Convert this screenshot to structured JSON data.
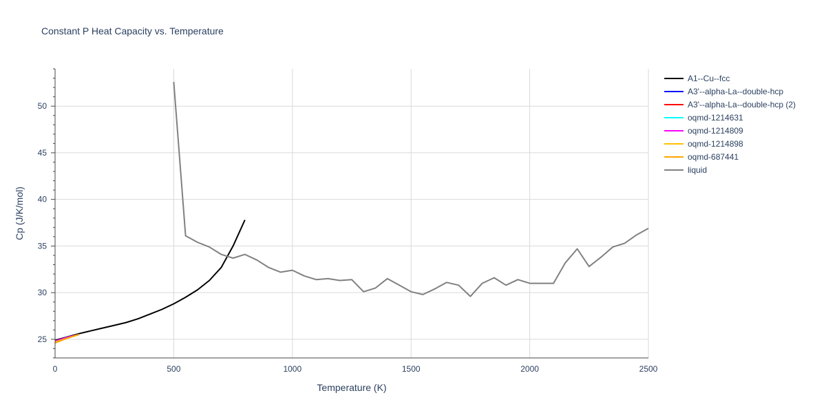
{
  "chart_data": {
    "type": "line",
    "title": "Constant P Heat Capacity vs. Temperature",
    "xlabel": "Temperature (K)",
    "ylabel": "Cp (J/K/mol)",
    "xlim": [
      0,
      2500
    ],
    "ylim": [
      23,
      54
    ],
    "xticks": [
      0,
      500,
      1000,
      1500,
      2000,
      2500
    ],
    "yticks": [
      25,
      30,
      35,
      40,
      45,
      50
    ],
    "grid": true,
    "legend_position": "right",
    "series": [
      {
        "name": "A1--Cu--fcc",
        "color": "#000000",
        "x": [
          0,
          100,
          150,
          200,
          250,
          300,
          350,
          400,
          450,
          500,
          550,
          600,
          650,
          700,
          750,
          800
        ],
        "y": [
          24.9,
          25.6,
          25.9,
          26.2,
          26.5,
          26.8,
          27.2,
          27.7,
          28.2,
          28.8,
          29.5,
          30.3,
          31.3,
          32.7,
          35.0,
          37.8
        ]
      },
      {
        "name": "A3'--alpha-La--double-hcp",
        "color": "#0000ff",
        "x": [
          0,
          50,
          100
        ],
        "y": [
          24.8,
          25.2,
          25.5
        ]
      },
      {
        "name": "A3'--alpha-La--double-hcp (2)",
        "color": "#ff0000",
        "x": [
          0,
          50,
          100
        ],
        "y": [
          24.8,
          25.2,
          25.5
        ]
      },
      {
        "name": "oqmd-1214631",
        "color": "#00ffff",
        "x": [
          0,
          50,
          100
        ],
        "y": [
          24.8,
          25.2,
          25.5
        ]
      },
      {
        "name": "oqmd-1214809",
        "color": "#ff00ff",
        "x": [
          0,
          50,
          100
        ],
        "y": [
          24.8,
          25.2,
          25.5
        ]
      },
      {
        "name": "oqmd-1214898",
        "color": "#ffbf00",
        "x": [
          0,
          50,
          100
        ],
        "y": [
          24.7,
          25.1,
          25.5
        ]
      },
      {
        "name": "oqmd-687441",
        "color": "#ffa500",
        "x": [
          0,
          50,
          100
        ],
        "y": [
          24.6,
          25.1,
          25.5
        ]
      },
      {
        "name": "liquid",
        "color": "#808080",
        "x": [
          500,
          550,
          600,
          650,
          700,
          750,
          800,
          850,
          900,
          950,
          1000,
          1050,
          1100,
          1150,
          1200,
          1250,
          1300,
          1350,
          1400,
          1450,
          1500,
          1550,
          1600,
          1650,
          1700,
          1750,
          1800,
          1850,
          1900,
          1950,
          2000,
          2050,
          2100,
          2150,
          2200,
          2250,
          2300,
          2350,
          2400,
          2450,
          2500
        ],
        "y": [
          52.6,
          36.1,
          35.4,
          34.9,
          34.1,
          33.7,
          34.1,
          33.5,
          32.7,
          32.2,
          32.4,
          31.8,
          31.4,
          31.5,
          31.3,
          31.4,
          30.1,
          30.5,
          31.5,
          30.8,
          30.1,
          29.8,
          30.4,
          31.1,
          30.8,
          29.6,
          31.0,
          31.6,
          30.8,
          31.4,
          31.0,
          31.0,
          31.0,
          33.2,
          34.7,
          32.8,
          33.8,
          34.9,
          35.3,
          36.2,
          36.9
        ]
      }
    ]
  }
}
